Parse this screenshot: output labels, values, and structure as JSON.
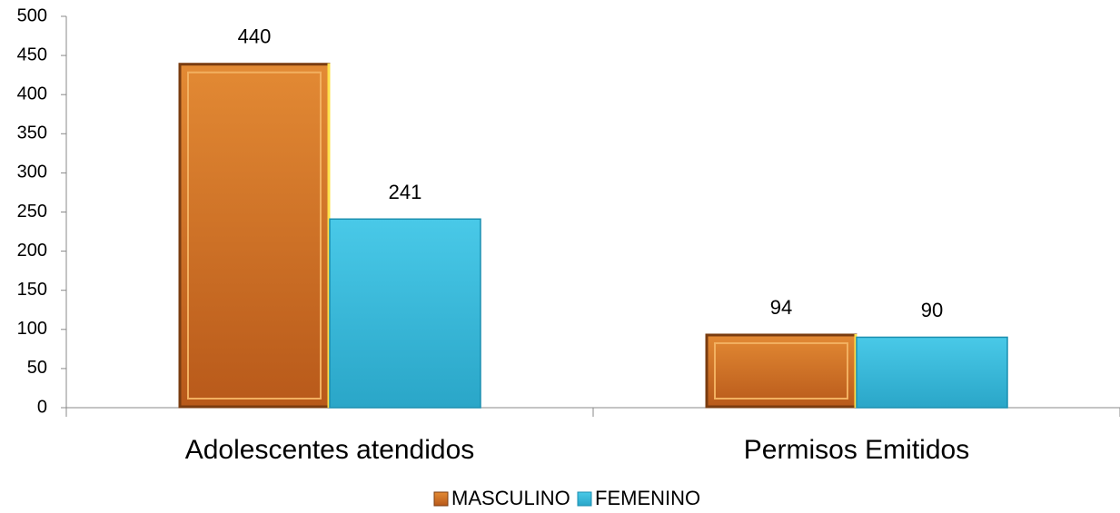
{
  "chart_data": {
    "type": "bar",
    "categories": [
      "Adolescentes atendidos",
      "Permisos Emitidos"
    ],
    "series": [
      {
        "name": "MASCULINO",
        "color": "#d9782a",
        "values": [
          440,
          94
        ]
      },
      {
        "name": "FEMENINO",
        "color": "#3cbfe0",
        "values": [
          241,
          90
        ]
      }
    ],
    "ylim": [
      0,
      500
    ],
    "yticks": [
      0,
      50,
      100,
      150,
      200,
      250,
      300,
      350,
      400,
      450,
      500
    ],
    "grid": false,
    "legend": "bottom"
  }
}
